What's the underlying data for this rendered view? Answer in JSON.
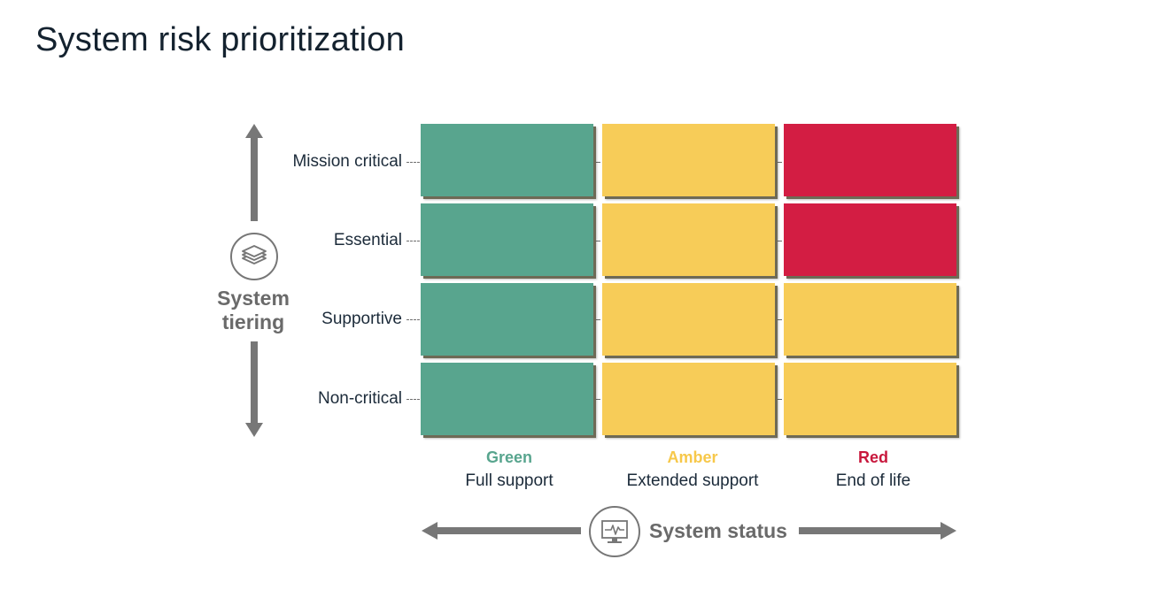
{
  "title": "System risk prioritization",
  "y_axis": {
    "label_line1": "System",
    "label_line2": "tiering",
    "icon": "stacked-layers-icon"
  },
  "x_axis": {
    "label": "System status",
    "icon": "monitor-pulse-icon"
  },
  "rows": [
    {
      "label": "Mission critical"
    },
    {
      "label": "Essential"
    },
    {
      "label": "Supportive"
    },
    {
      "label": "Non-critical"
    }
  ],
  "columns": [
    {
      "status": "Green",
      "description": "Full support",
      "color": "#58a58e"
    },
    {
      "status": "Amber",
      "description": "Extended support",
      "color": "#f7cc58"
    },
    {
      "status": "Red",
      "description": "End of life",
      "color": "#d31d43"
    }
  ],
  "matrix": [
    [
      "green",
      "amber",
      "red"
    ],
    [
      "green",
      "amber",
      "red"
    ],
    [
      "green",
      "amber",
      "amber"
    ],
    [
      "green",
      "amber",
      "amber"
    ]
  ],
  "colors": {
    "green": "#58a58e",
    "amber": "#f7cc58",
    "red": "#d31d43",
    "axis_gray": "#6a6a6a"
  }
}
